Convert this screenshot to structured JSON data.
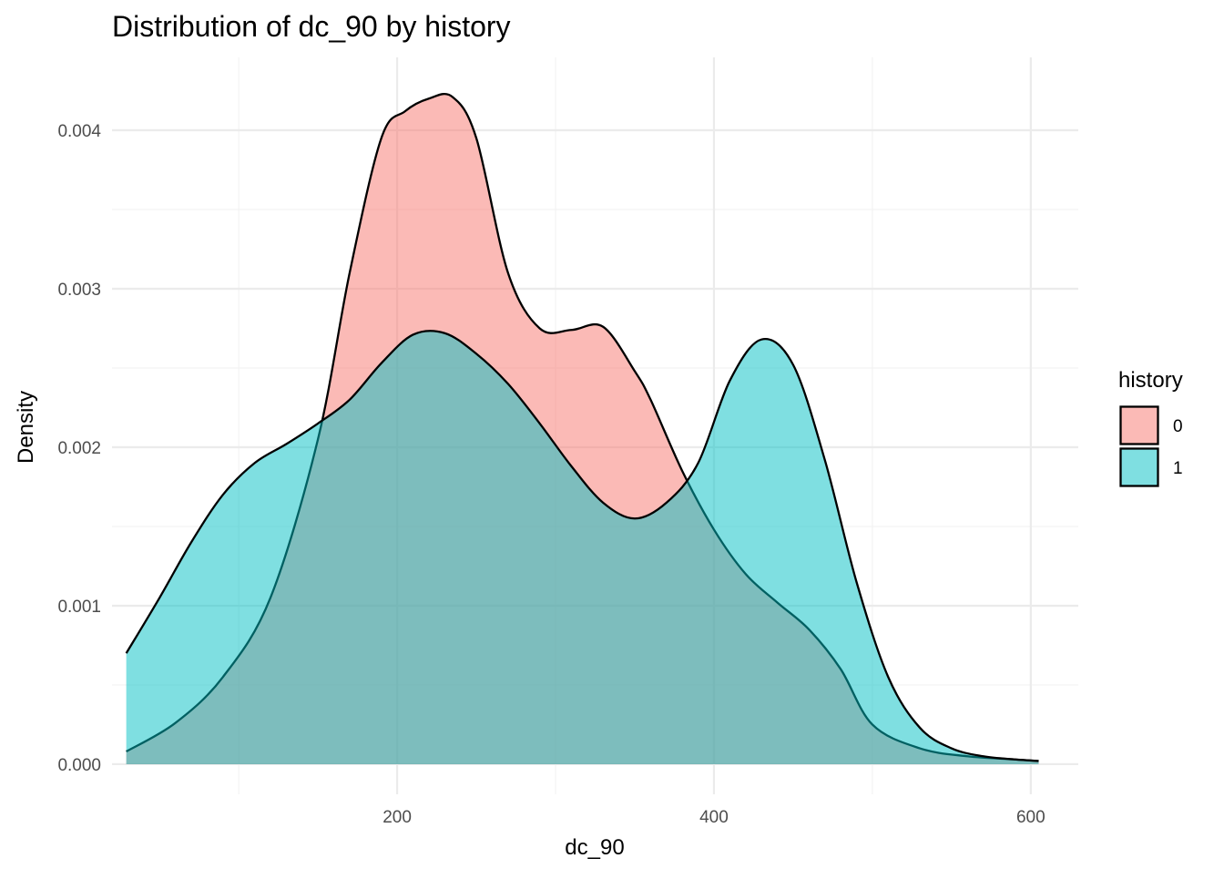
{
  "chart_data": {
    "type": "area",
    "title": "Distribution of dc_90 by history",
    "xlabel": "dc_90",
    "ylabel": "Density",
    "xlim": [
      20,
      630
    ],
    "ylim": [
      -0.00019,
      0.00446
    ],
    "x_ticks": [
      200,
      400,
      600
    ],
    "x_tick_labels": [
      "200",
      "400",
      "600"
    ],
    "x_minor_ticks": [
      100,
      300,
      500
    ],
    "y_ticks": [
      0,
      0.001,
      0.002,
      0.003,
      0.004
    ],
    "y_tick_labels": [
      "0.000",
      "0.001",
      "0.002",
      "0.003",
      "0.004"
    ],
    "y_minor_ticks": [
      0.0005,
      0.0015,
      0.0025,
      0.0035
    ],
    "grid": true,
    "legend": {
      "title": "history",
      "placement": "right"
    },
    "series": [
      {
        "name": "0",
        "color": "#F8766D",
        "x": [
          29,
          60,
          90,
          120,
          150,
          170,
          190,
          205,
          220,
          235,
          250,
          270,
          290,
          310,
          330,
          350,
          360,
          380,
          400,
          420,
          440,
          460,
          480,
          500,
          530,
          560,
          590,
          605
        ],
        "y": [
          8e-05,
          0.00026,
          0.00055,
          0.00105,
          0.00205,
          0.0031,
          0.00395,
          0.00412,
          0.0042,
          0.00421,
          0.00395,
          0.0031,
          0.00275,
          0.00274,
          0.00276,
          0.00248,
          0.0023,
          0.00185,
          0.00148,
          0.0012,
          0.00102,
          0.00085,
          0.0006,
          0.00025,
          0.0001,
          5e-05,
          3e-05,
          2e-05
        ]
      },
      {
        "name": "1",
        "color": "#00BFC4",
        "x": [
          29,
          50,
          70,
          90,
          110,
          130,
          150,
          170,
          190,
          210,
          230,
          250,
          270,
          290,
          310,
          330,
          350,
          370,
          390,
          410,
          430,
          450,
          470,
          490,
          510,
          530,
          550,
          570,
          590,
          605
        ],
        "y": [
          0.0007,
          0.00105,
          0.0014,
          0.0017,
          0.0019,
          0.00202,
          0.00215,
          0.0023,
          0.00253,
          0.00271,
          0.00272,
          0.00259,
          0.0024,
          0.00215,
          0.00188,
          0.00165,
          0.00155,
          0.00165,
          0.0019,
          0.00242,
          0.00268,
          0.00252,
          0.00192,
          0.00115,
          0.00055,
          0.00023,
          0.0001,
          5e-05,
          3e-05,
          2e-05
        ]
      }
    ]
  }
}
